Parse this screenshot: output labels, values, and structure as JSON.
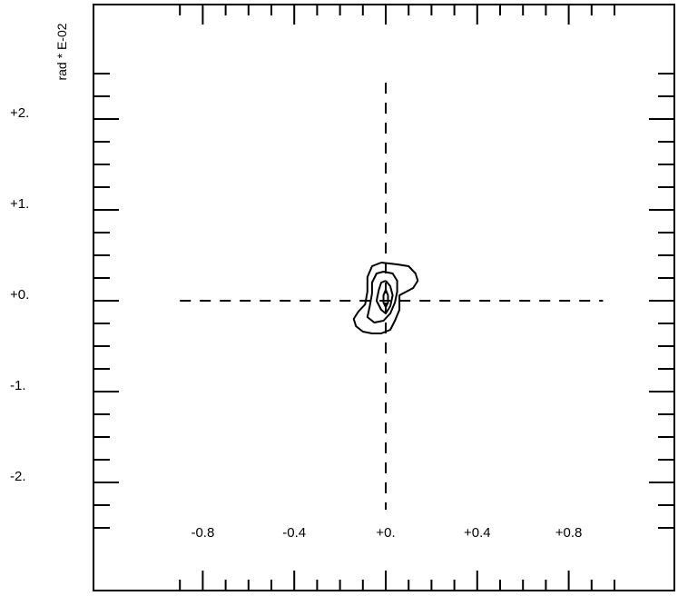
{
  "chart_data": {
    "type": "contour",
    "title": "",
    "xlabel": "",
    "ylabel": "rad * E-02",
    "xlim": [
      -0.9,
      1.0
    ],
    "ylim": [
      -2.8,
      3.2
    ],
    "x_ticks": [
      {
        "value": -0.8,
        "label": "-0.8"
      },
      {
        "value": -0.4,
        "label": "-0.4"
      },
      {
        "value": 0.0,
        "label": "+0."
      },
      {
        "value": 0.4,
        "label": "+0.4"
      },
      {
        "value": 0.8,
        "label": "+0.8"
      }
    ],
    "y_ticks": [
      {
        "value": 2,
        "label": "+2."
      },
      {
        "value": 1,
        "label": "+1."
      },
      {
        "value": 0,
        "label": "+0."
      },
      {
        "value": -1,
        "label": "-1."
      },
      {
        "value": -2,
        "label": "-2."
      }
    ],
    "x_minor_step": 0.1,
    "y_minor_step": 0.25,
    "crosshair": {
      "x_range": [
        -0.9,
        0.95
      ],
      "y_range": [
        -2.3,
        2.4
      ],
      "dashed": true
    },
    "contours": [
      [
        [
          -0.02,
          0.42
        ],
        [
          0.05,
          0.4
        ],
        [
          0.1,
          0.38
        ],
        [
          0.13,
          0.3
        ],
        [
          0.14,
          0.22
        ],
        [
          0.12,
          0.14
        ],
        [
          0.09,
          0.1
        ],
        [
          0.06,
          0.06
        ],
        [
          0.06,
          -0.1
        ],
        [
          0.04,
          -0.22
        ],
        [
          0.02,
          -0.32
        ],
        [
          -0.02,
          -0.36
        ],
        [
          -0.06,
          -0.36
        ],
        [
          -0.1,
          -0.34
        ],
        [
          -0.13,
          -0.28
        ],
        [
          -0.14,
          -0.2
        ],
        [
          -0.12,
          -0.12
        ],
        [
          -0.09,
          -0.04
        ],
        [
          -0.08,
          0.1
        ],
        [
          -0.08,
          0.26
        ],
        [
          -0.06,
          0.38
        ],
        [
          -0.02,
          0.42
        ]
      ],
      [
        [
          -0.01,
          0.32
        ],
        [
          0.03,
          0.3
        ],
        [
          0.05,
          0.22
        ],
        [
          0.05,
          0.1
        ],
        [
          0.04,
          -0.02
        ],
        [
          0.02,
          -0.14
        ],
        [
          -0.01,
          -0.22
        ],
        [
          -0.05,
          -0.24
        ],
        [
          -0.08,
          -0.18
        ],
        [
          -0.07,
          -0.06
        ],
        [
          -0.06,
          0.08
        ],
        [
          -0.06,
          0.2
        ],
        [
          -0.04,
          0.3
        ],
        [
          -0.01,
          0.32
        ]
      ],
      [
        [
          0.0,
          0.22
        ],
        [
          0.02,
          0.16
        ],
        [
          0.03,
          0.06
        ],
        [
          0.02,
          -0.06
        ],
        [
          0.0,
          -0.14
        ],
        [
          -0.02,
          -0.1
        ],
        [
          -0.04,
          0.0
        ],
        [
          -0.03,
          0.12
        ],
        [
          -0.02,
          0.2
        ],
        [
          0.0,
          0.22
        ]
      ],
      [
        [
          0.0,
          0.12
        ],
        [
          0.01,
          0.06
        ],
        [
          0.01,
          -0.02
        ],
        [
          0.0,
          -0.07
        ],
        [
          -0.01,
          -0.02
        ],
        [
          -0.01,
          0.06
        ],
        [
          0.0,
          0.12
        ]
      ]
    ],
    "grid": false,
    "legend": "none"
  }
}
